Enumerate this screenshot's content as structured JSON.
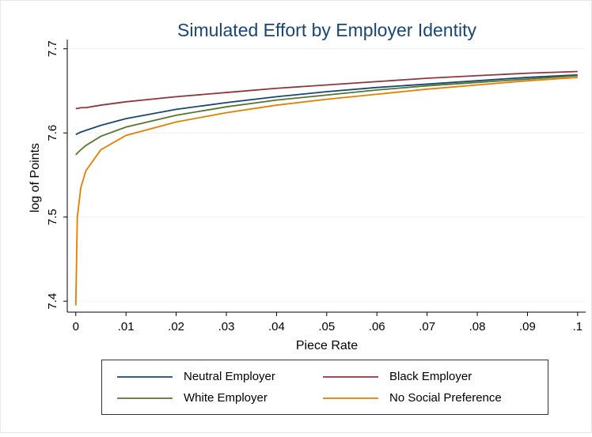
{
  "chart_data": {
    "type": "line",
    "title": "Simulated Effort by Employer Identity",
    "x_label": "Piece Rate",
    "y_label": "log of Points",
    "x": [
      0,
      0.0003,
      0.001,
      0.002,
      0.005,
      0.01,
      0.02,
      0.03,
      0.04,
      0.05,
      0.06,
      0.07,
      0.08,
      0.09,
      0.1
    ],
    "series": [
      {
        "name": "Neutral Employer",
        "color": "#1a476f",
        "values": [
          7.598,
          7.599,
          7.601,
          7.603,
          7.609,
          7.617,
          7.628,
          7.636,
          7.643,
          7.649,
          7.654,
          7.658,
          7.662,
          7.666,
          7.669
        ]
      },
      {
        "name": "Black Employer",
        "color": "#90353b",
        "values": [
          7.629,
          7.629,
          7.63,
          7.63,
          7.633,
          7.637,
          7.643,
          7.648,
          7.653,
          7.657,
          7.661,
          7.665,
          7.668,
          7.671,
          7.673
        ]
      },
      {
        "name": "White Employer",
        "color": "#55752f",
        "values": [
          7.574,
          7.576,
          7.58,
          7.585,
          7.596,
          7.607,
          7.621,
          7.631,
          7.639,
          7.645,
          7.651,
          7.656,
          7.66,
          7.664,
          7.668
        ]
      },
      {
        "name": "No Social Preference",
        "color": "#e37e00",
        "values": [
          7.395,
          7.5,
          7.535,
          7.555,
          7.58,
          7.597,
          7.613,
          7.624,
          7.633,
          7.64,
          7.646,
          7.652,
          7.657,
          7.662,
          7.666
        ]
      }
    ],
    "xlim": [
      -0.0017,
      0.1016
    ],
    "ylim": [
      7.387,
      7.711
    ],
    "xticks": [
      0,
      {
        "value": 0.01,
        "label": ".01"
      },
      {
        "value": 0.02,
        "label": ".02"
      },
      {
        "value": 0.03,
        "label": ".03"
      },
      {
        "value": 0.04,
        "label": ".04"
      },
      {
        "value": 0.05,
        "label": ".05"
      },
      {
        "value": 0.06,
        "label": ".06"
      },
      {
        "value": 0.07,
        "label": ".07"
      },
      {
        "value": 0.08,
        "label": ".08"
      },
      {
        "value": 0.09,
        "label": ".09"
      },
      {
        "value": 0.1,
        "label": ".1"
      }
    ],
    "yticks": [
      7.4,
      7.5,
      7.6,
      7.7
    ],
    "grid": true,
    "legend": "bottom"
  }
}
